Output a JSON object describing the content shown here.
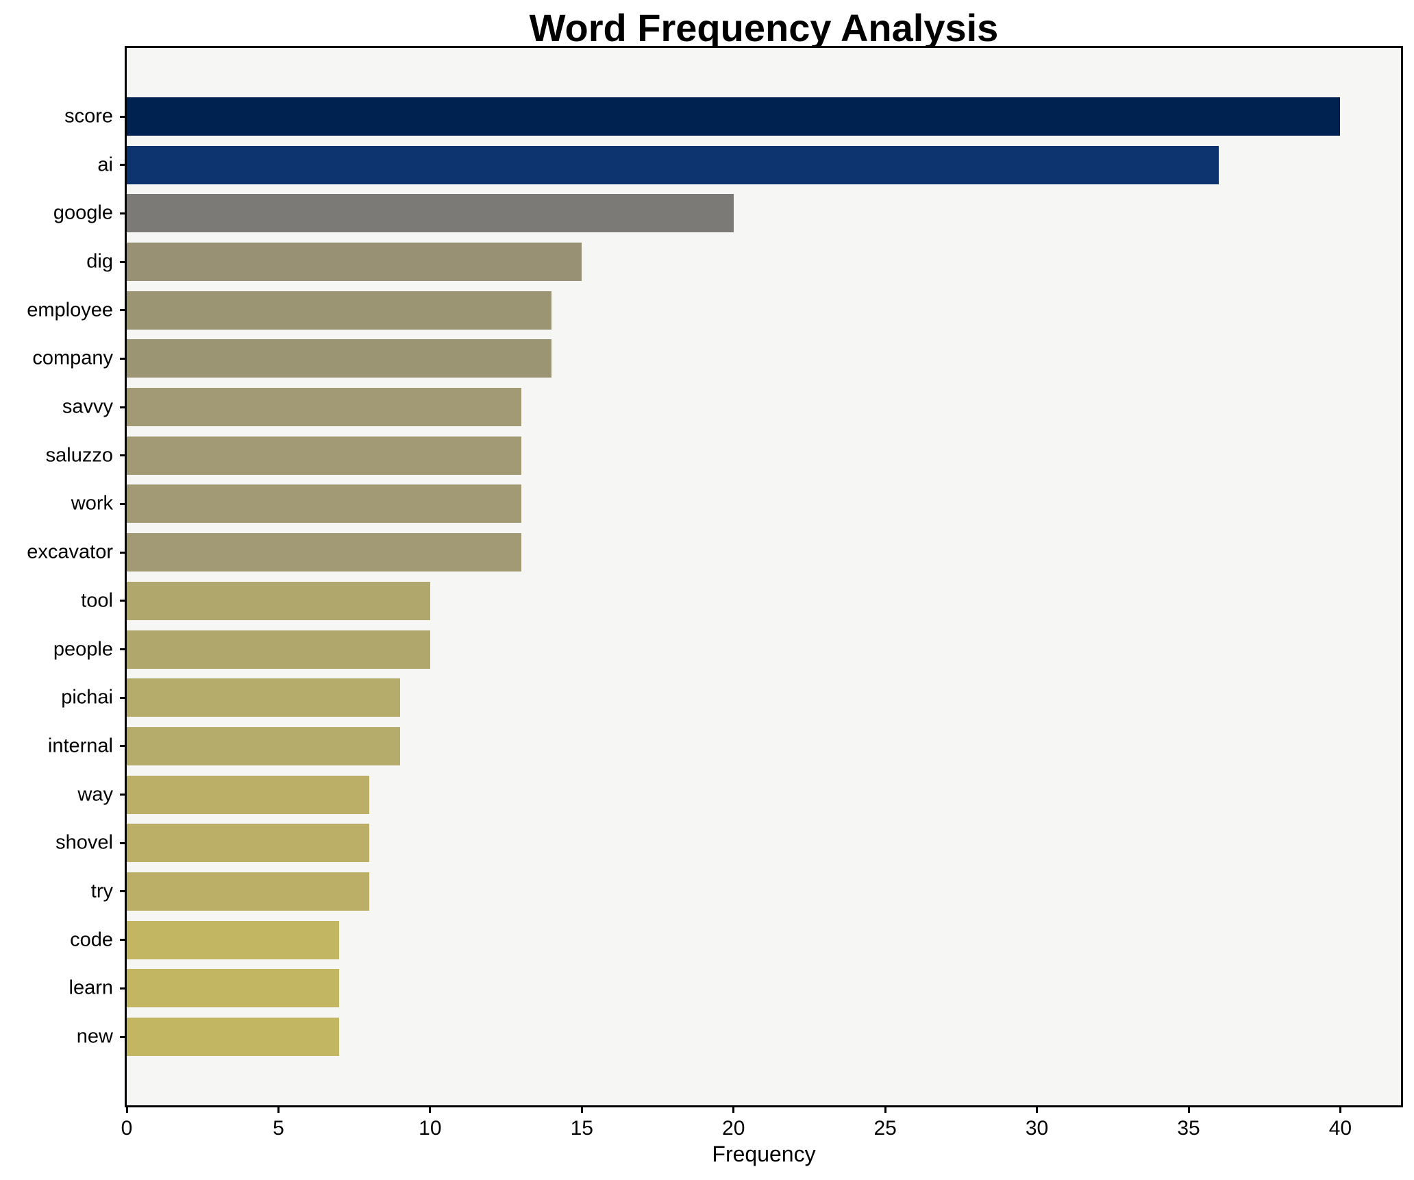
{
  "chart_data": {
    "type": "bar",
    "orientation": "horizontal",
    "title": "Word Frequency Analysis",
    "xlabel": "Frequency",
    "ylabel": "",
    "xlim": [
      0,
      42
    ],
    "xticks": [
      0,
      5,
      10,
      15,
      20,
      25,
      30,
      35,
      40
    ],
    "grid": false,
    "legend": null,
    "plot_background": "#f6f6f4",
    "figure_background": "#ffffff",
    "spine_color": "#000000",
    "categories": [
      "score",
      "ai",
      "google",
      "dig",
      "employee",
      "company",
      "savvy",
      "saluzzo",
      "work",
      "excavator",
      "tool",
      "people",
      "pichai",
      "internal",
      "way",
      "shovel",
      "try",
      "code",
      "learn",
      "new"
    ],
    "values": [
      40,
      36,
      20,
      15,
      14,
      14,
      13,
      13,
      13,
      13,
      10,
      10,
      9,
      9,
      8,
      8,
      8,
      7,
      7,
      7
    ],
    "bar_colors": [
      "#002250",
      "#0d346f",
      "#7b7a77",
      "#989173",
      "#9c9573",
      "#9c9573",
      "#a19a74",
      "#a19a74",
      "#a19a74",
      "#a19a74",
      "#b0a76d",
      "#b0a76d",
      "#b5ab6a",
      "#b5ab6a",
      "#bbaf67",
      "#bbaf67",
      "#bbaf67",
      "#c3b662",
      "#c3b662",
      "#c3b662"
    ]
  }
}
